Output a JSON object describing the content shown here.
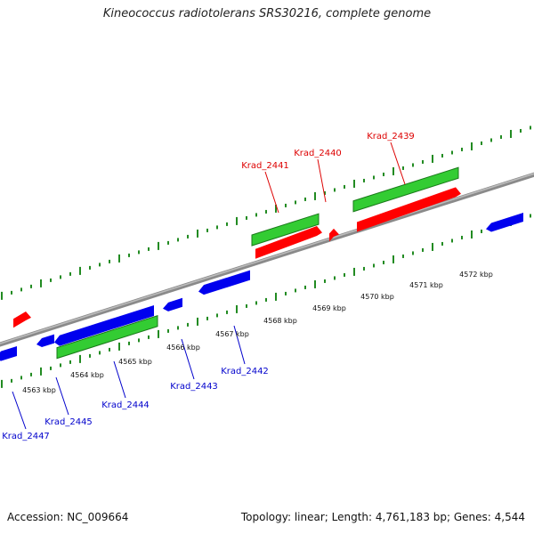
{
  "title": "Kineococcus radiotolerans SRS30216, complete genome",
  "footer": {
    "accession": "Accession: NC_009664",
    "summary": "Topology: linear; Length: 4,761,183 bp; Genes: 4,544"
  },
  "colors": {
    "backbone": "#8a8a8a",
    "gene_forward": "#ff0000",
    "gene_reverse": "#0000ee",
    "cds": "#33cc33",
    "tick_green": "#228b22",
    "label_forward": "#dd0000",
    "label_reverse": "#0000cc",
    "scale_text": "#111111"
  },
  "scale_ticks_kbp": [
    {
      "value": 4563,
      "label": "4563 kbp"
    },
    {
      "value": 4564,
      "label": "4564 kbp"
    },
    {
      "value": 4565,
      "label": "4565 kbp"
    },
    {
      "value": 4566,
      "label": "4566 kbp"
    },
    {
      "value": 4567,
      "label": "4567 kbp"
    },
    {
      "value": 4568,
      "label": "4568 kbp"
    },
    {
      "value": 4569,
      "label": "4569 kbp"
    },
    {
      "value": 4570,
      "label": "4570 kbp"
    },
    {
      "value": 4571,
      "label": "4571 kbp"
    },
    {
      "value": 4572,
      "label": "4572 kbp"
    }
  ],
  "genes": [
    {
      "id": "Krad_2447",
      "label": "Krad_2447",
      "strand": "reverse"
    },
    {
      "id": "Krad_2445",
      "label": "Krad_2445",
      "strand": "reverse"
    },
    {
      "id": "Krad_2444",
      "label": "Krad_2444",
      "strand": "reverse",
      "has_cds": true
    },
    {
      "id": "Krad_2443",
      "label": "Krad_2443",
      "strand": "reverse"
    },
    {
      "id": "Krad_2442",
      "label": "Krad_2442",
      "strand": "reverse"
    },
    {
      "id": "Krad_2441",
      "label": "Krad_2441",
      "strand": "forward",
      "has_cds": true
    },
    {
      "id": "Krad_2440",
      "label": "Krad_2440",
      "strand": "forward"
    },
    {
      "id": "Krad_2439",
      "label": "Krad_2439",
      "strand": "forward",
      "has_cds": true
    }
  ]
}
